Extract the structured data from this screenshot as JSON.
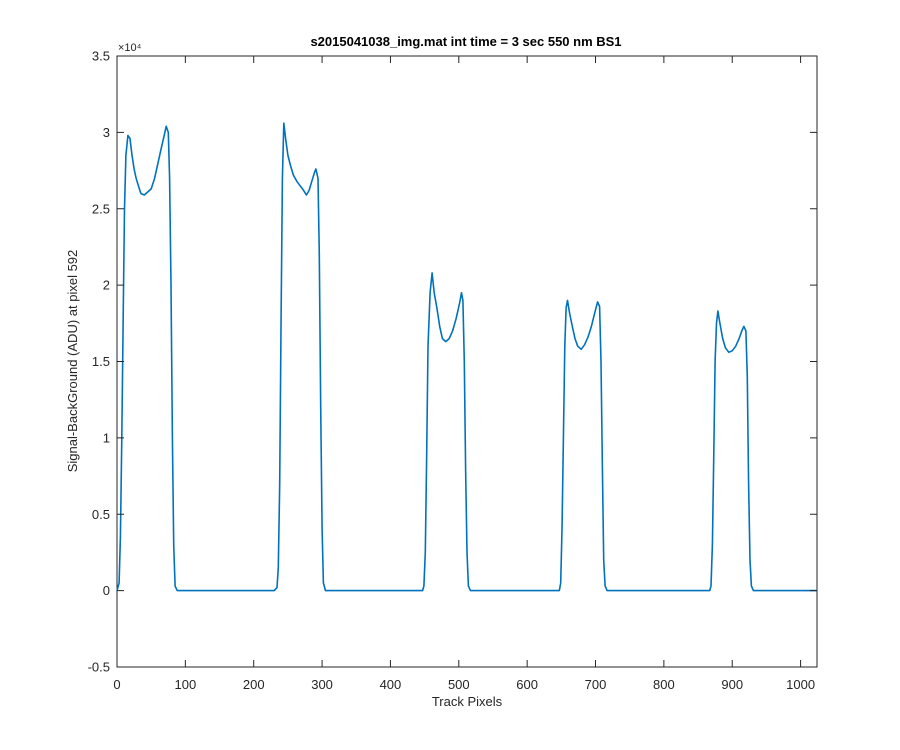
{
  "chart_data": {
    "type": "line",
    "title": "s2015041038_img.mat int time = 3 sec  550 nm BS1",
    "xlabel": "Track Pixels",
    "ylabel": "Signal-BackGround (ADU) at pixel 592",
    "xlim": [
      0,
      1024
    ],
    "ylim": [
      -5000,
      35000
    ],
    "x_ticks": [
      0,
      100,
      200,
      300,
      400,
      500,
      600,
      700,
      800,
      900,
      1000
    ],
    "y_ticks": [
      -5000,
      0,
      5000,
      10000,
      15000,
      20000,
      25000,
      30000,
      35000
    ],
    "y_tick_labels": [
      "-0.5",
      "0",
      "0.5",
      "1",
      "1.5",
      "2",
      "2.5",
      "3",
      "3.5"
    ],
    "y_exponent_label": "×10⁴",
    "line_color": "#0072BD",
    "grid": false,
    "series": [
      {
        "values": [
          [
            0,
            0
          ],
          [
            3,
            500
          ],
          [
            5,
            3500
          ],
          [
            7,
            10000
          ],
          [
            9,
            18000
          ],
          [
            11,
            25000
          ],
          [
            13,
            28500
          ],
          [
            16,
            29800
          ],
          [
            19,
            29600
          ],
          [
            22,
            28500
          ],
          [
            25,
            27600
          ],
          [
            28,
            27000
          ],
          [
            32,
            26400
          ],
          [
            35,
            26000
          ],
          [
            40,
            25900
          ],
          [
            45,
            26100
          ],
          [
            50,
            26300
          ],
          [
            55,
            27000
          ],
          [
            60,
            28000
          ],
          [
            65,
            29000
          ],
          [
            69,
            29800
          ],
          [
            72,
            30400
          ],
          [
            75,
            30000
          ],
          [
            77,
            27000
          ],
          [
            79,
            20000
          ],
          [
            81,
            10000
          ],
          [
            83,
            3000
          ],
          [
            85,
            300
          ],
          [
            88,
            0
          ],
          [
            120,
            0
          ],
          [
            160,
            0
          ],
          [
            200,
            0
          ],
          [
            230,
            0
          ],
          [
            234,
            200
          ],
          [
            236,
            1500
          ],
          [
            238,
            7000
          ],
          [
            240,
            18000
          ],
          [
            242,
            27000
          ],
          [
            244,
            30600
          ],
          [
            247,
            29500
          ],
          [
            250,
            28500
          ],
          [
            254,
            27800
          ],
          [
            258,
            27200
          ],
          [
            263,
            26800
          ],
          [
            268,
            26500
          ],
          [
            273,
            26200
          ],
          [
            277,
            25900
          ],
          [
            281,
            26200
          ],
          [
            285,
            26800
          ],
          [
            289,
            27400
          ],
          [
            291,
            27600
          ],
          [
            294,
            27000
          ],
          [
            296,
            22000
          ],
          [
            298,
            12000
          ],
          [
            300,
            4000
          ],
          [
            302,
            500
          ],
          [
            305,
            0
          ],
          [
            340,
            0
          ],
          [
            380,
            0
          ],
          [
            420,
            0
          ],
          [
            447,
            0
          ],
          [
            449,
            300
          ],
          [
            451,
            2500
          ],
          [
            453,
            9000
          ],
          [
            455,
            16000
          ],
          [
            458,
            19500
          ],
          [
            461,
            20800
          ],
          [
            464,
            19500
          ],
          [
            468,
            18500
          ],
          [
            472,
            17300
          ],
          [
            476,
            16500
          ],
          [
            481,
            16300
          ],
          [
            486,
            16500
          ],
          [
            491,
            17000
          ],
          [
            496,
            17800
          ],
          [
            501,
            18800
          ],
          [
            504,
            19500
          ],
          [
            506,
            19000
          ],
          [
            508,
            15000
          ],
          [
            510,
            8000
          ],
          [
            512,
            2500
          ],
          [
            514,
            300
          ],
          [
            517,
            0
          ],
          [
            550,
            0
          ],
          [
            600,
            0
          ],
          [
            647,
            0
          ],
          [
            649,
            500
          ],
          [
            651,
            4000
          ],
          [
            653,
            10000
          ],
          [
            655,
            16000
          ],
          [
            657,
            18500
          ],
          [
            659,
            19000
          ],
          [
            662,
            18200
          ],
          [
            666,
            17300
          ],
          [
            670,
            16500
          ],
          [
            674,
            16000
          ],
          [
            679,
            15800
          ],
          [
            684,
            16100
          ],
          [
            689,
            16600
          ],
          [
            694,
            17300
          ],
          [
            699,
            18200
          ],
          [
            703,
            18900
          ],
          [
            706,
            18600
          ],
          [
            708,
            15000
          ],
          [
            710,
            8000
          ],
          [
            712,
            2000
          ],
          [
            714,
            300
          ],
          [
            717,
            0
          ],
          [
            760,
            0
          ],
          [
            820,
            0
          ],
          [
            867,
            0
          ],
          [
            869,
            300
          ],
          [
            871,
            3000
          ],
          [
            873,
            9000
          ],
          [
            875,
            15000
          ],
          [
            877,
            17500
          ],
          [
            879,
            18300
          ],
          [
            882,
            17500
          ],
          [
            886,
            16500
          ],
          [
            890,
            15900
          ],
          [
            895,
            15600
          ],
          [
            900,
            15700
          ],
          [
            905,
            16000
          ],
          [
            910,
            16500
          ],
          [
            914,
            17000
          ],
          [
            917,
            17300
          ],
          [
            920,
            17000
          ],
          [
            922,
            14000
          ],
          [
            924,
            7000
          ],
          [
            926,
            2000
          ],
          [
            928,
            300
          ],
          [
            931,
            0
          ],
          [
            970,
            0
          ],
          [
            1000,
            0
          ],
          [
            1024,
            0
          ]
        ]
      }
    ]
  }
}
